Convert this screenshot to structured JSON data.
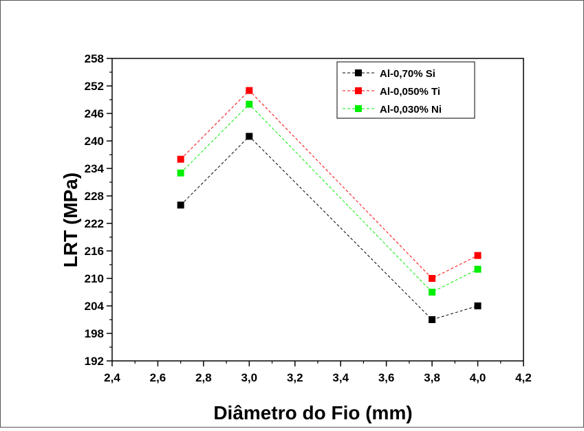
{
  "chart_data": {
    "type": "line",
    "title": "",
    "xlabel": "Diâmetro do Fio (mm)",
    "ylabel": "LRT (MPa)",
    "xlim": [
      2.4,
      4.2
    ],
    "ylim": [
      192,
      258
    ],
    "xticks": [
      "2,4",
      "2,6",
      "2,8",
      "3,0",
      "3,2",
      "3,4",
      "3,6",
      "3,8",
      "4,0",
      "4,2"
    ],
    "xtick_values": [
      2.4,
      2.6,
      2.8,
      3.0,
      3.2,
      3.4,
      3.6,
      3.8,
      4.0,
      4.2
    ],
    "yticks": [
      "192",
      "198",
      "204",
      "210",
      "216",
      "222",
      "228",
      "234",
      "240",
      "246",
      "252",
      "258"
    ],
    "ytick_values": [
      192,
      198,
      204,
      210,
      216,
      222,
      228,
      234,
      240,
      246,
      252,
      258
    ],
    "grid": false,
    "legend_position": "top-right",
    "x": [
      2.7,
      3.0,
      3.8,
      4.0
    ],
    "series": [
      {
        "name": "Al-0,70% Si",
        "color": "#000000",
        "values": [
          226,
          241,
          201,
          204
        ]
      },
      {
        "name": "Al-0,050% Ti",
        "color": "#ff0000",
        "values": [
          236,
          251,
          210,
          215
        ]
      },
      {
        "name": "Al-0,030% Ni",
        "color": "#00ee00",
        "values": [
          233,
          248,
          207,
          212
        ]
      }
    ]
  }
}
